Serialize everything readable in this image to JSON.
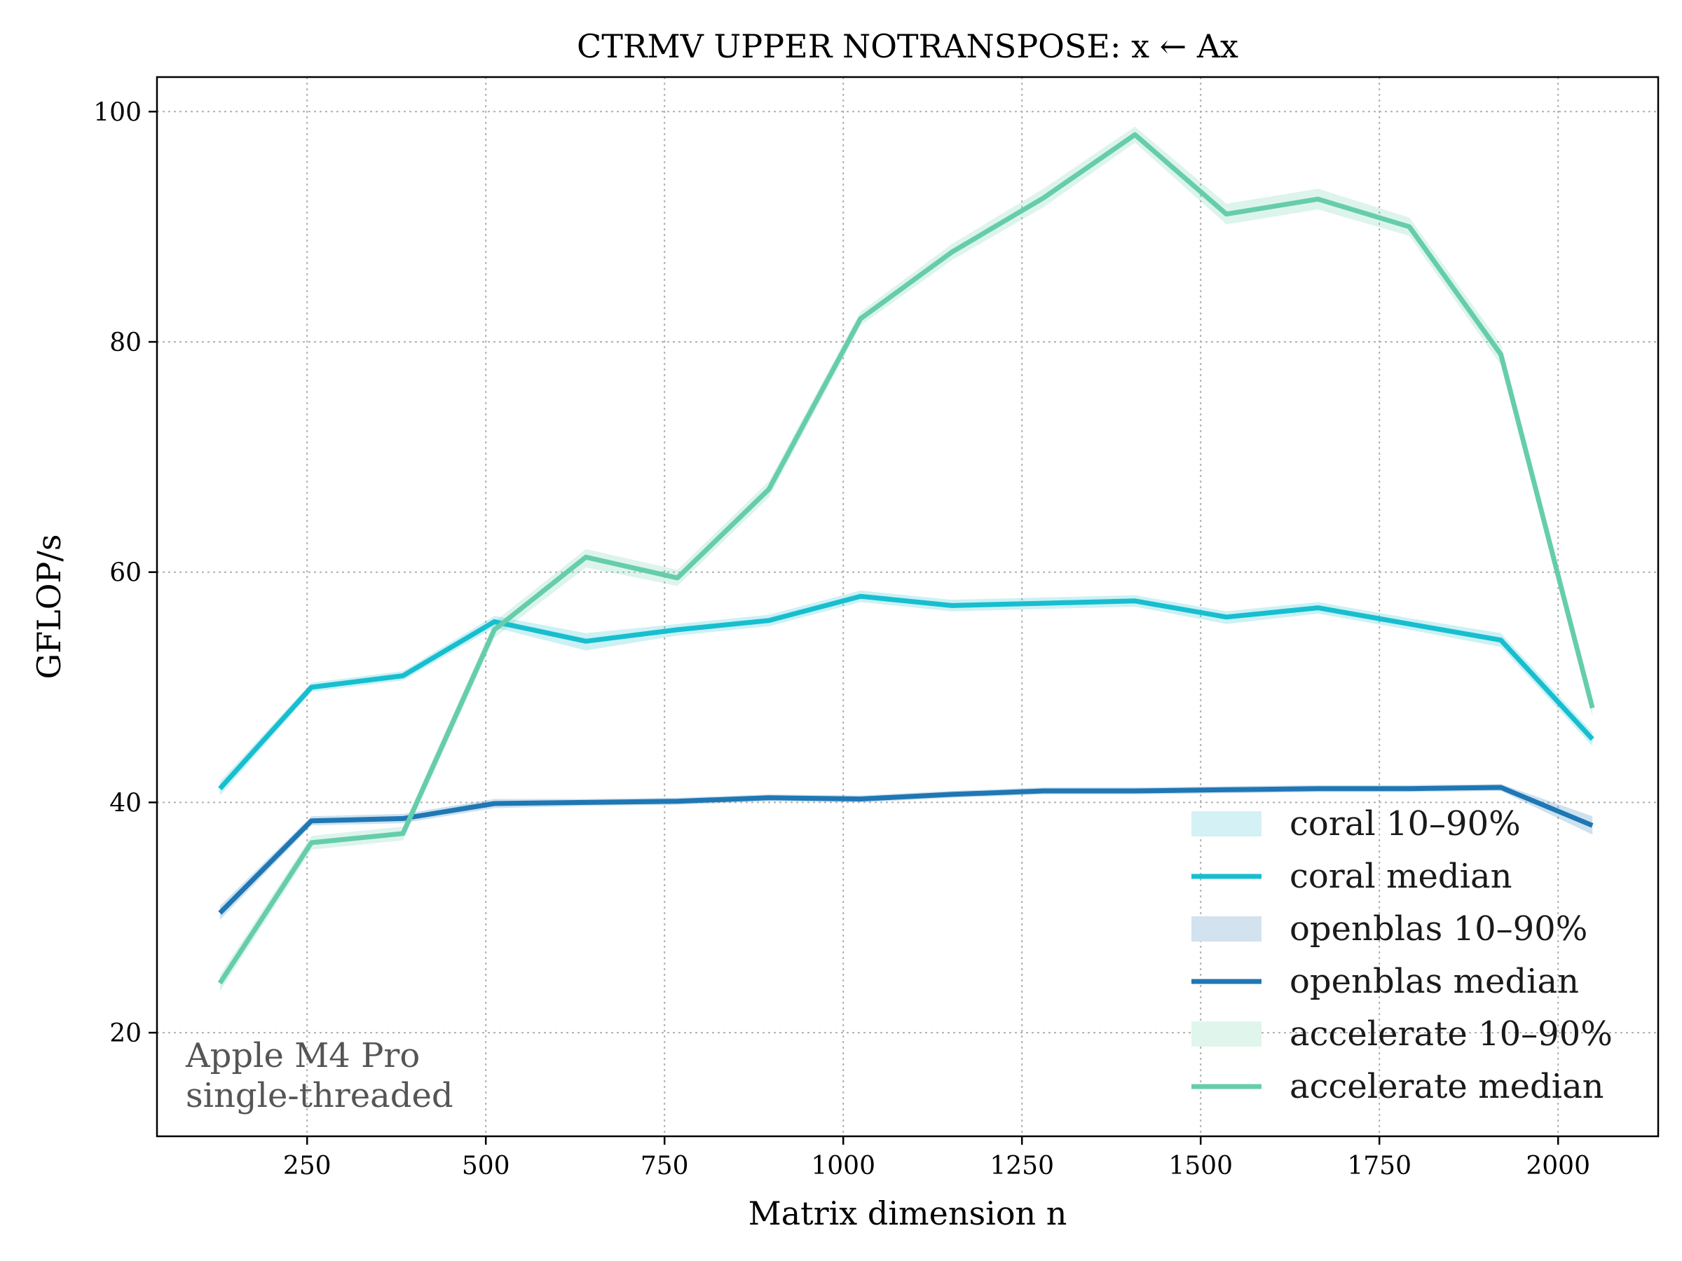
{
  "chart_data": {
    "type": "line",
    "title": "CTRMV UPPER NOTRANSPOSE: x ← Ax",
    "xlabel": "Matrix dimension n",
    "ylabel": "GFLOP/s",
    "xlim": [
      40,
      2140
    ],
    "ylim": [
      11,
      103
    ],
    "xticks": [
      250,
      500,
      750,
      1000,
      1250,
      1500,
      1750,
      2000
    ],
    "yticks": [
      20,
      40,
      60,
      80,
      100
    ],
    "grid": true,
    "legend_position": "lower-right",
    "x": [
      128,
      256,
      384,
      512,
      640,
      768,
      896,
      1024,
      1152,
      1280,
      1408,
      1536,
      1664,
      1792,
      1920,
      2048
    ],
    "series": [
      {
        "name": "coral median",
        "band_name": "coral 10–90%",
        "color": "#17becf",
        "band_color": "#d4f1f5",
        "values": [
          41.2,
          50.0,
          51.0,
          55.7,
          54.0,
          55.0,
          55.8,
          57.9,
          57.1,
          57.3,
          57.5,
          56.1,
          56.9,
          55.5,
          54.1,
          45.5
        ],
        "band_low": [
          40.6,
          49.6,
          50.6,
          55.2,
          53.2,
          54.5,
          55.3,
          57.4,
          56.6,
          56.8,
          57.0,
          55.5,
          56.4,
          55.0,
          53.5,
          44.9
        ],
        "band_high": [
          41.8,
          50.4,
          51.4,
          56.2,
          54.7,
          55.5,
          56.3,
          58.4,
          57.6,
          57.8,
          58.0,
          56.6,
          57.4,
          56.0,
          54.7,
          46.1
        ]
      },
      {
        "name": "openblas median",
        "band_name": "openblas 10–90%",
        "color": "#1f77b4",
        "band_color": "#d2e2ee",
        "values": [
          30.4,
          38.4,
          38.6,
          39.9,
          40.0,
          40.1,
          40.4,
          40.3,
          40.7,
          41.0,
          41.0,
          41.1,
          41.2,
          41.2,
          41.3,
          38.0
        ],
        "band_low": [
          29.8,
          38.0,
          38.2,
          39.5,
          39.7,
          39.8,
          40.1,
          40.0,
          40.4,
          40.7,
          40.7,
          40.8,
          40.9,
          40.9,
          41.0,
          37.2
        ],
        "band_high": [
          31.0,
          38.8,
          39.0,
          40.3,
          40.3,
          40.4,
          40.7,
          40.6,
          41.0,
          41.3,
          41.3,
          41.4,
          41.5,
          41.5,
          41.6,
          38.8
        ]
      },
      {
        "name": "accelerate median",
        "band_name": "accelerate 10–90%",
        "color": "#66cdaa",
        "band_color": "#e0f5ec",
        "values": [
          24.3,
          36.5,
          37.3,
          55.0,
          61.3,
          59.5,
          67.2,
          82.0,
          87.8,
          92.5,
          98.0,
          91.1,
          92.4,
          90.0,
          78.9,
          48.2
        ],
        "band_low": [
          23.6,
          35.9,
          36.7,
          54.3,
          60.4,
          58.8,
          66.5,
          81.4,
          87.1,
          91.7,
          97.3,
          90.2,
          91.5,
          89.2,
          78.0,
          47.4
        ],
        "band_high": [
          25.0,
          37.1,
          37.9,
          55.7,
          62.0,
          60.2,
          67.9,
          82.6,
          88.5,
          93.3,
          98.7,
          92.0,
          93.3,
          90.8,
          79.8,
          49.0
        ]
      }
    ],
    "annotation": [
      "Apple M4 Pro",
      "single-threaded"
    ]
  }
}
